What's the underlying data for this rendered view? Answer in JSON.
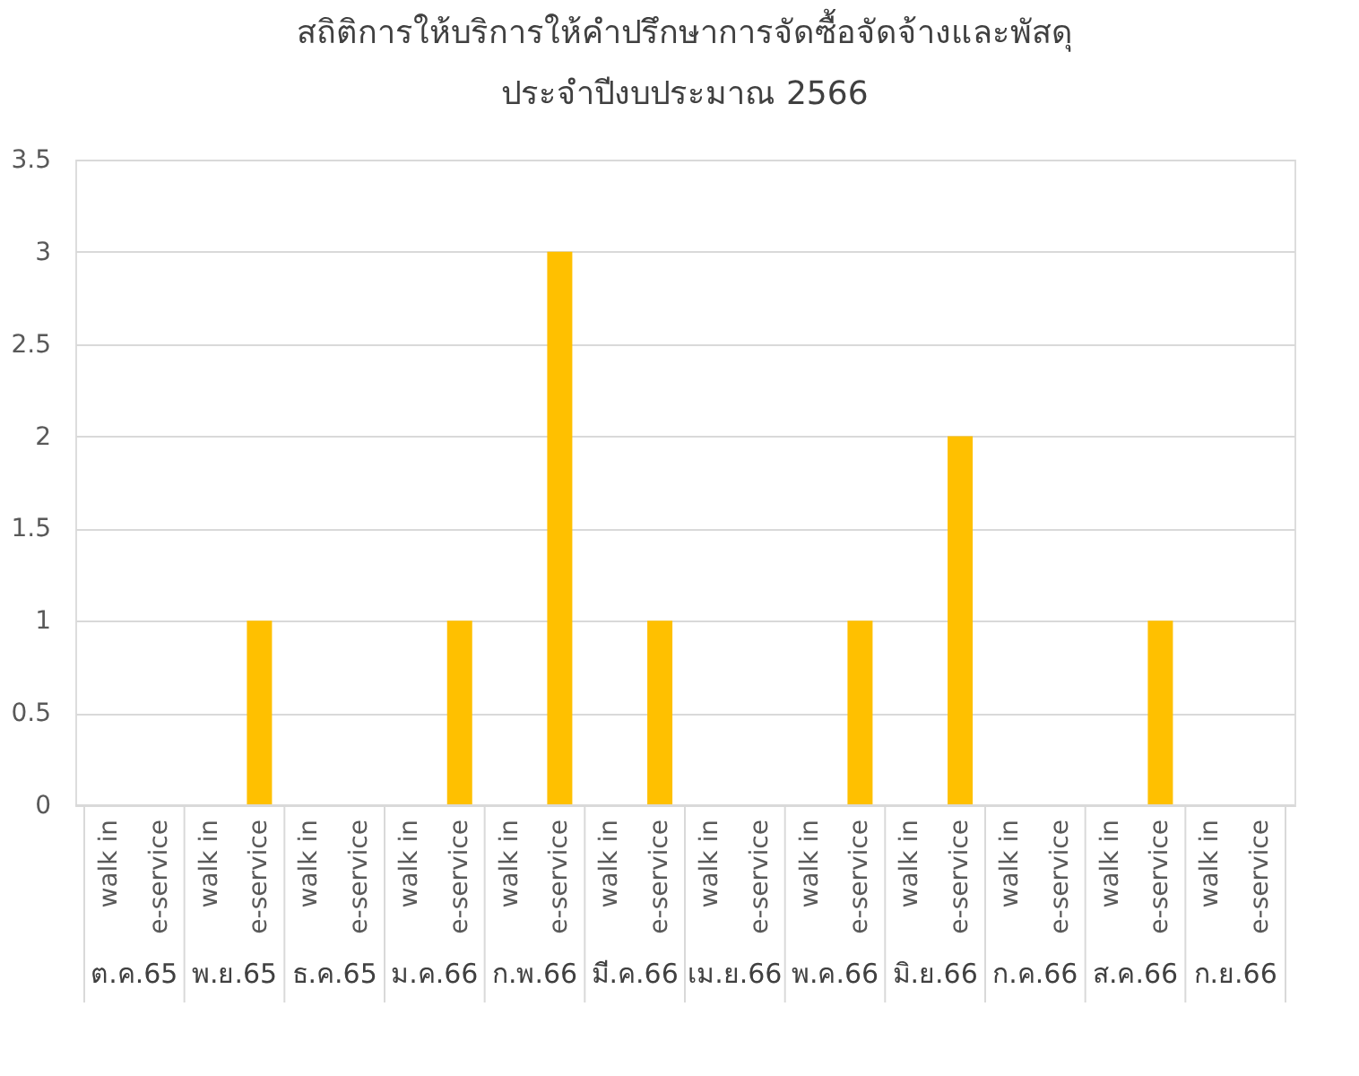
{
  "chart_data": {
    "type": "bar",
    "title": "สถิติการให้บริการให้คำปรึกษาการจัดซื้อจัดจ้างและพัสดุ\nประจำปีงบประมาณ 2566",
    "categories": [
      "walk in",
      "e-service",
      "walk in",
      "e-service",
      "walk in",
      "e-service",
      "walk in",
      "e-service",
      "walk in",
      "e-service",
      "walk in",
      "e-service",
      "walk in",
      "e-service",
      "walk in",
      "e-service",
      "walk in",
      "e-service",
      "walk in",
      "e-service",
      "walk in",
      "e-service",
      "walk in",
      "e-service"
    ],
    "values": [
      0,
      0,
      0,
      1,
      0,
      0,
      0,
      1,
      0,
      3,
      0,
      1,
      0,
      0,
      0,
      1,
      0,
      2,
      0,
      0,
      0,
      1,
      0,
      0
    ],
    "color": "#ffc000",
    "annotations": [
      "ต.ค.65",
      "พ.ย.65",
      "ธ.ค.65",
      "ม.ค.66",
      "ก.พ.66",
      "มี.ค.66",
      "เม.ย.66",
      "พ.ค.66",
      "มิ.ย.66",
      "ก.ค.66",
      "ส.ค.66",
      "ก.ย.66"
    ],
    "ylim": [
      0,
      3.5
    ],
    "yticks": [
      0,
      0.5,
      1,
      1.5,
      2,
      2.5,
      3,
      3.5
    ],
    "grid": "y"
  }
}
